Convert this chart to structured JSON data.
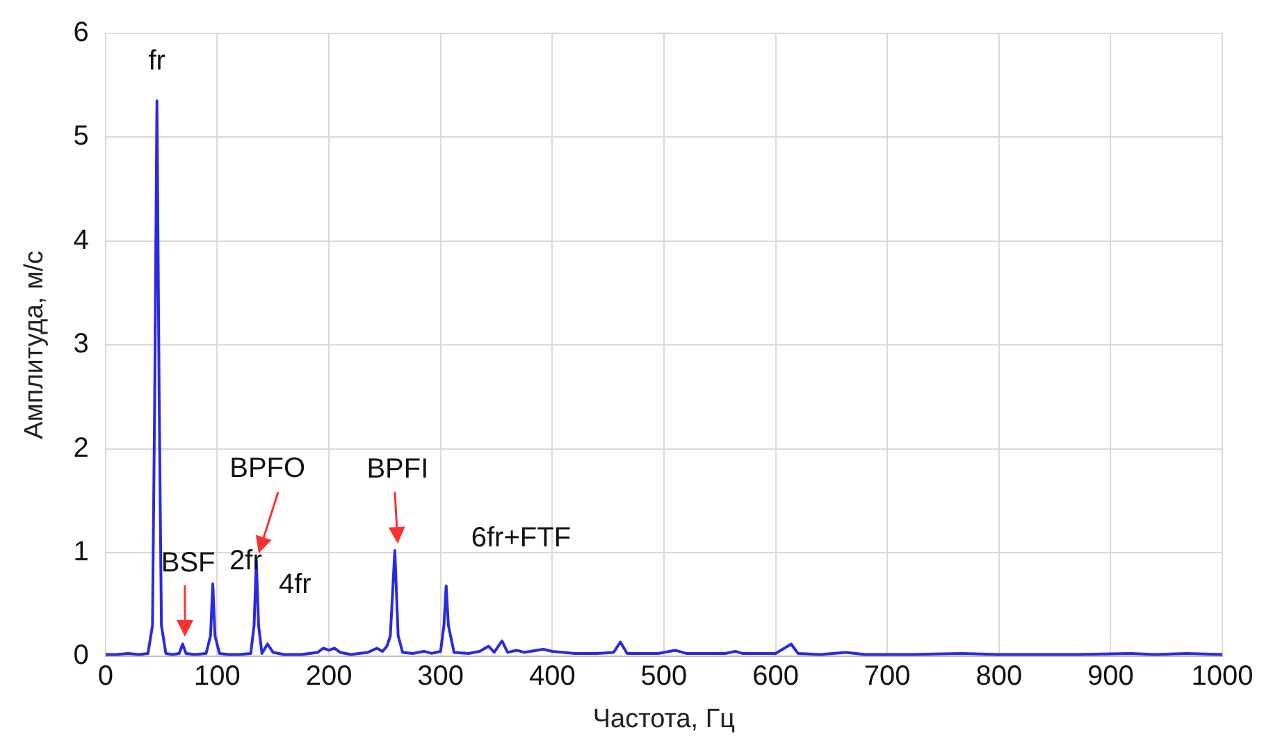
{
  "chart_data": {
    "type": "line",
    "xlabel": "Частота, Гц",
    "ylabel": "Амплитуда, м/с",
    "x": [
      0,
      10,
      20,
      30,
      38,
      42,
      44,
      46,
      48,
      50,
      54,
      60,
      66,
      69,
      72,
      80,
      90,
      94,
      96,
      98,
      102,
      110,
      120,
      130,
      133,
      135,
      137,
      140,
      145,
      150,
      160,
      175,
      190,
      195,
      200,
      205,
      210,
      220,
      235,
      243,
      248,
      252,
      255,
      259,
      262,
      266,
      275,
      285,
      292,
      300,
      303,
      305,
      307,
      312,
      325,
      335,
      343,
      348,
      355,
      360,
      368,
      375,
      392,
      400,
      420,
      440,
      455,
      461,
      467,
      480,
      495,
      510,
      520,
      540,
      555,
      564,
      570,
      600,
      614,
      620,
      640,
      663,
      680,
      720,
      767,
      800,
      870,
      918,
      940,
      968,
      1000
    ],
    "series": [
      {
        "color": "#2a2ae0",
        "values": [
          0.02,
          0.02,
          0.03,
          0.02,
          0.03,
          0.3,
          2.5,
          5.35,
          2.5,
          0.3,
          0.03,
          0.02,
          0.03,
          0.12,
          0.03,
          0.02,
          0.03,
          0.2,
          0.7,
          0.2,
          0.03,
          0.02,
          0.02,
          0.03,
          0.3,
          0.93,
          0.3,
          0.03,
          0.12,
          0.04,
          0.02,
          0.02,
          0.04,
          0.08,
          0.06,
          0.08,
          0.04,
          0.02,
          0.04,
          0.08,
          0.05,
          0.1,
          0.2,
          1.02,
          0.2,
          0.04,
          0.03,
          0.05,
          0.03,
          0.05,
          0.3,
          0.68,
          0.3,
          0.04,
          0.03,
          0.05,
          0.1,
          0.04,
          0.15,
          0.04,
          0.06,
          0.04,
          0.07,
          0.05,
          0.03,
          0.03,
          0.04,
          0.14,
          0.03,
          0.03,
          0.03,
          0.06,
          0.03,
          0.03,
          0.03,
          0.05,
          0.03,
          0.03,
          0.12,
          0.03,
          0.02,
          0.04,
          0.02,
          0.02,
          0.03,
          0.02,
          0.02,
          0.03,
          0.02,
          0.03,
          0.02
        ]
      }
    ],
    "xlim": [
      0,
      1000
    ],
    "xticks": [
      0,
      100,
      200,
      300,
      400,
      500,
      600,
      700,
      800,
      900,
      1000
    ],
    "ylim": [
      0,
      6
    ],
    "yticks": [
      0,
      1,
      2,
      3,
      4,
      5,
      6
    ],
    "grid": true,
    "legend": false,
    "marker": "none",
    "line_style": "solid",
    "annotations": [
      {
        "text": "fr",
        "x": 46,
        "y": 5.35
      },
      {
        "text": "BSF",
        "x": 69,
        "y": 0.12
      },
      {
        "text": "2fr",
        "x": 96,
        "y": 0.7
      },
      {
        "text": "BPFO",
        "x": 135,
        "y": 0.93
      },
      {
        "text": "4fr",
        "x": 197,
        "y": 0.08
      },
      {
        "text": "BPFI",
        "x": 259,
        "y": 1.02
      },
      {
        "text": "6fr+FTF",
        "x": 305,
        "y": 0.68
      }
    ]
  }
}
